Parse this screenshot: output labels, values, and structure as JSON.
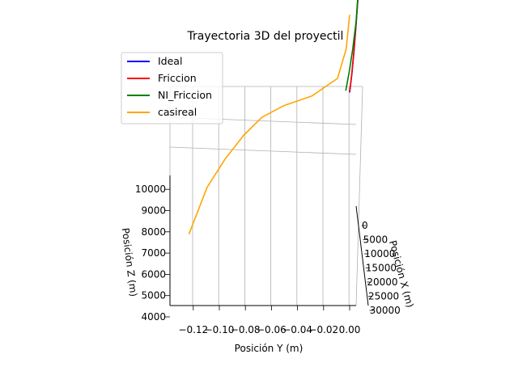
{
  "chart_data": {
    "type": "line",
    "title": "Trayectoria 3D del proyectil",
    "xlabel": "Posición X (m)",
    "ylabel": "Posición Y (m)",
    "zlabel": "Posición Z (m)",
    "x_ticks": [
      "0",
      "5000",
      "10000",
      "15000",
      "20000",
      "25000",
      "30000"
    ],
    "y_ticks": [
      "−0.12",
      "−0.10",
      "−0.08",
      "−0.06",
      "−0.04",
      "−0.02",
      "0.00"
    ],
    "z_ticks": [
      "4000",
      "5000",
      "6000",
      "7000",
      "8000",
      "9000",
      "10000"
    ],
    "grid": true,
    "legend_position": "top-left",
    "series": [
      {
        "name": "Ideal",
        "color": "#0000ff",
        "points": [
          [
            0,
            0.0,
            9600
          ],
          [
            5000,
            0.0,
            10600
          ],
          [
            10000,
            0.0,
            11500
          ],
          [
            15000,
            0.0,
            12400
          ],
          [
            20000,
            0.0,
            13200
          ]
        ]
      },
      {
        "name": "Friccion",
        "color": "#ff0000",
        "points": [
          [
            0,
            0.0,
            9650
          ],
          [
            5000,
            0.0,
            10650
          ],
          [
            10000,
            0.0,
            11550
          ],
          [
            15000,
            0.0,
            12450
          ],
          [
            20000,
            0.0,
            13250
          ]
        ]
      },
      {
        "name": "NI_Friccion",
        "color": "#008000",
        "points": [
          [
            0,
            -0.003,
            9700
          ],
          [
            5000,
            -0.002,
            10700
          ],
          [
            10000,
            -0.001,
            11600
          ],
          [
            15000,
            0.0,
            12500
          ],
          [
            20000,
            0.0,
            13300
          ]
        ]
      },
      {
        "name": "casireal",
        "color": "#ffa500",
        "points": [
          [
            20000,
            -0.13,
            5300
          ],
          [
            17000,
            -0.115,
            6600
          ],
          [
            14000,
            -0.1,
            7400
          ],
          [
            11000,
            -0.085,
            8100
          ],
          [
            8000,
            -0.07,
            8700
          ],
          [
            5000,
            -0.052,
            9100
          ],
          [
            3000,
            -0.03,
            9500
          ],
          [
            2000,
            -0.01,
            10400
          ],
          [
            1000,
            -0.003,
            12000
          ],
          [
            0,
            0.0,
            14000
          ]
        ]
      }
    ]
  }
}
